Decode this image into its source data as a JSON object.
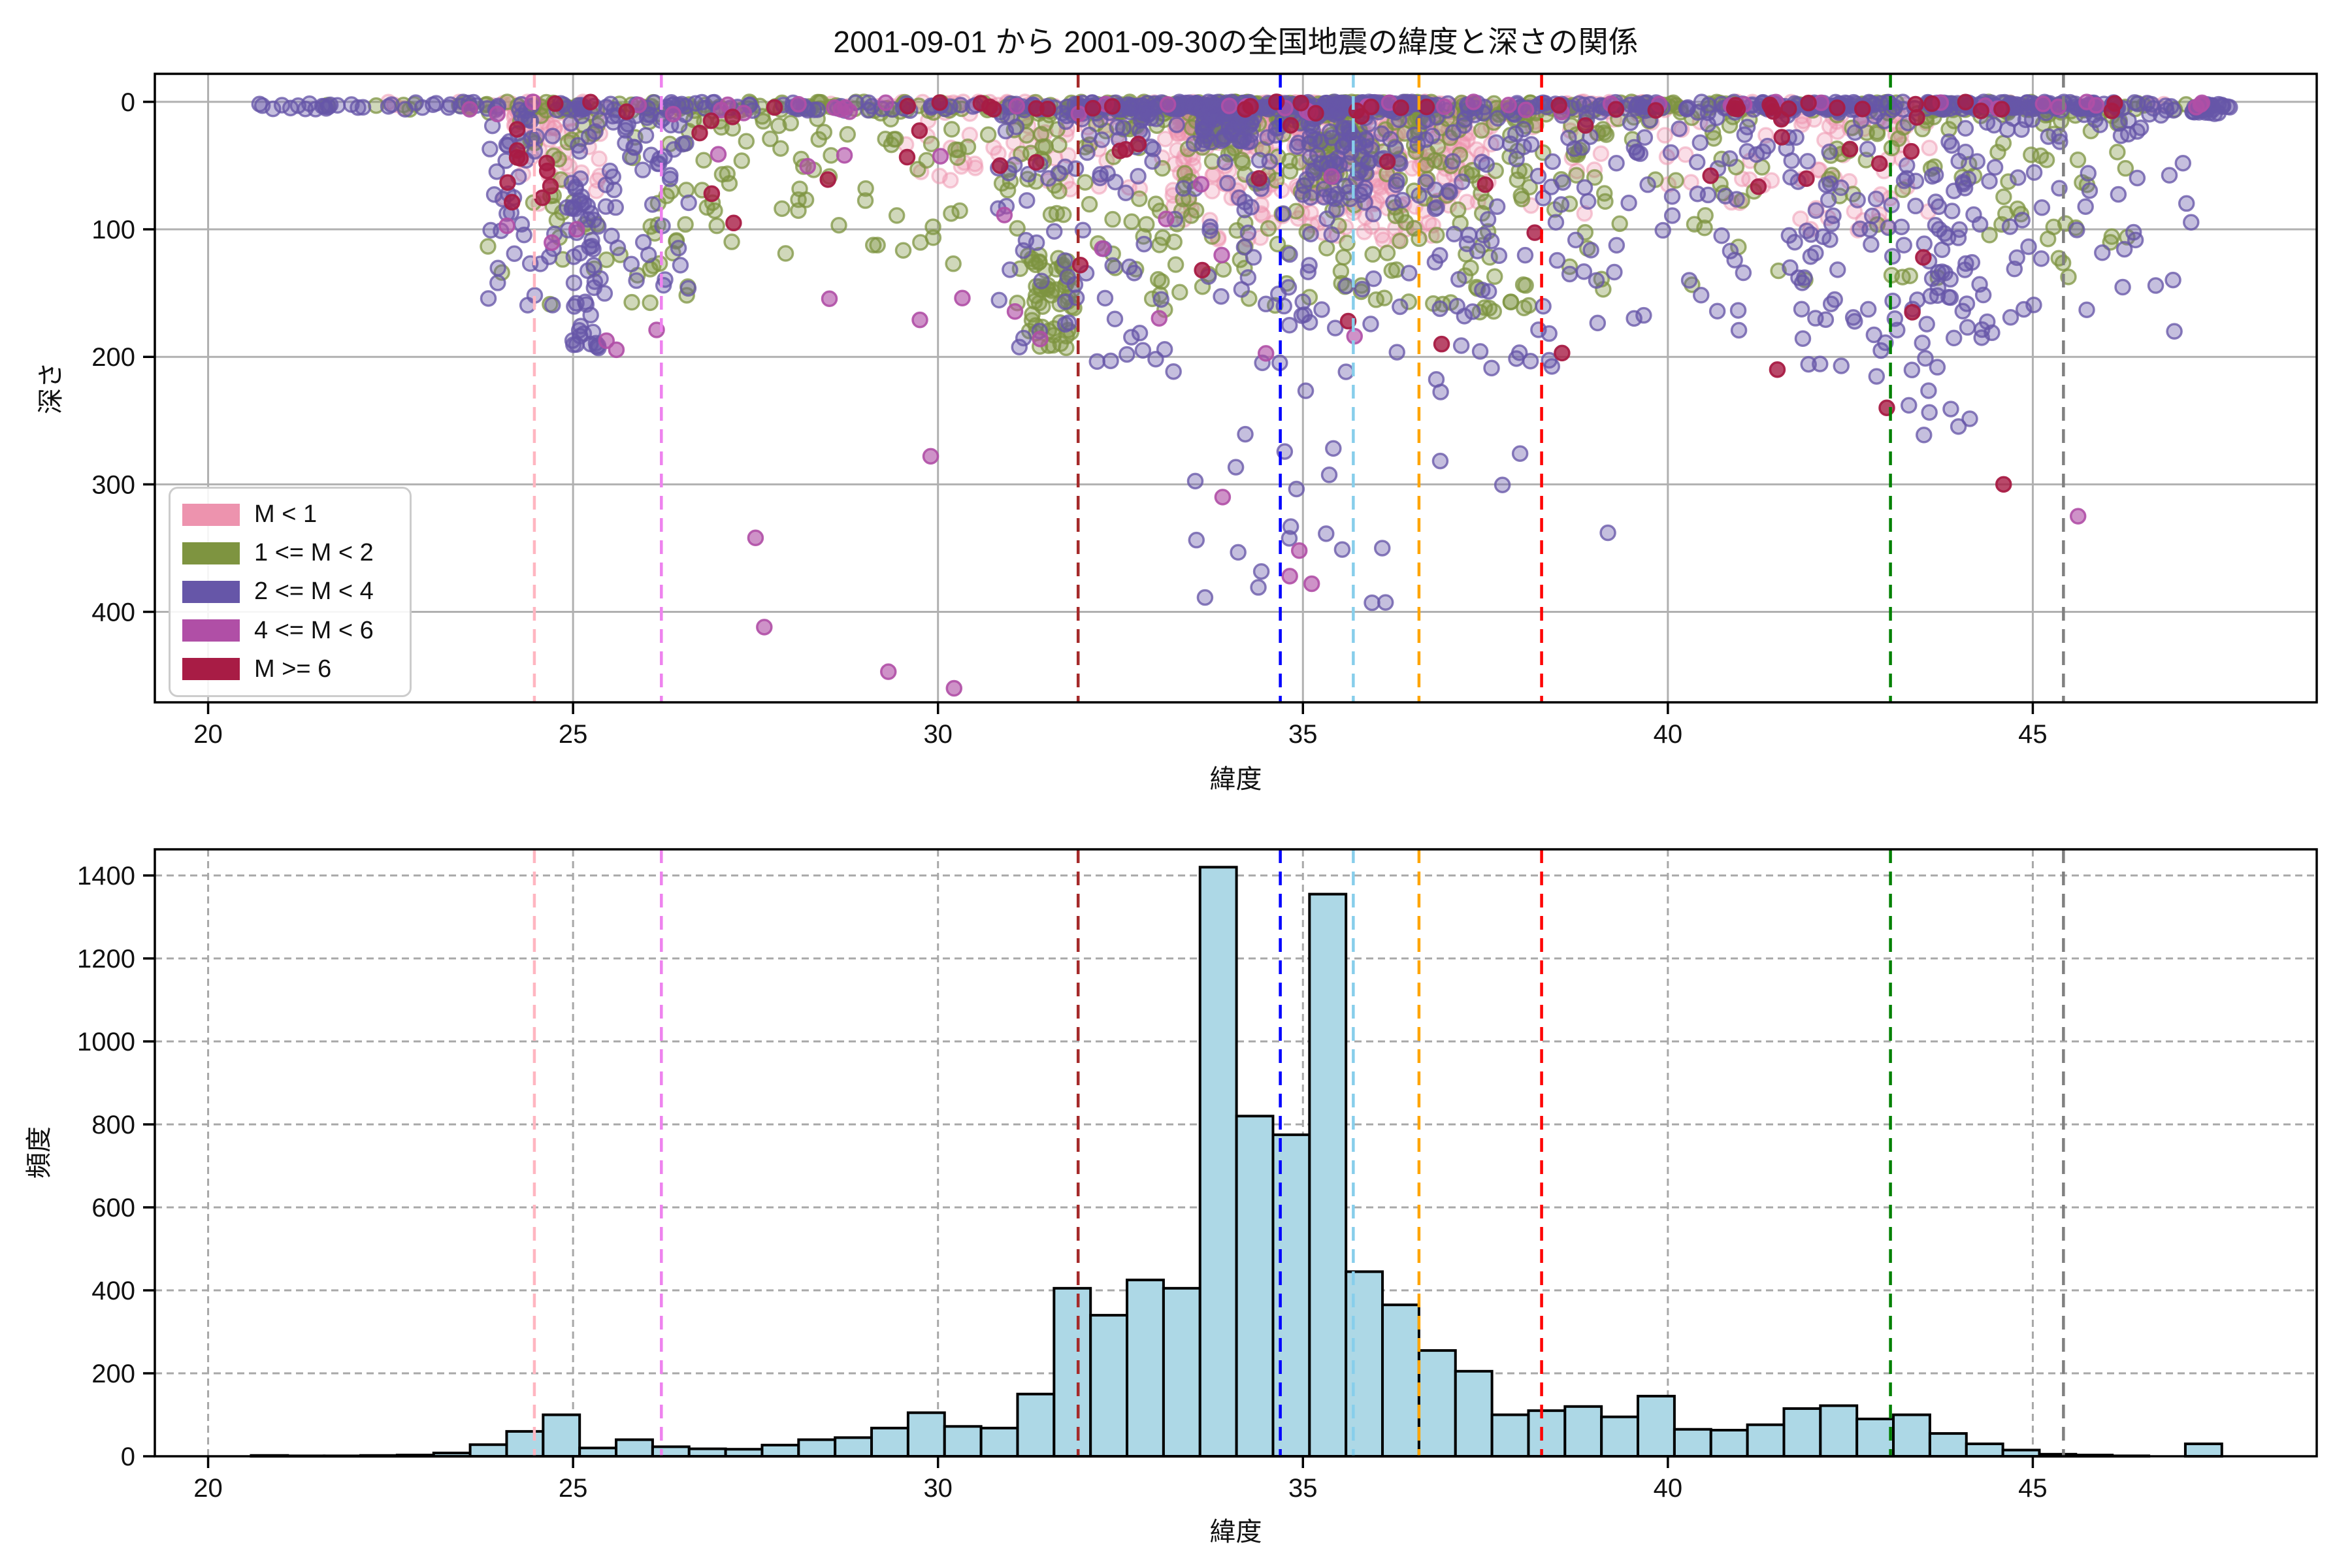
{
  "title": "2001-09-01 から 2001-09-30の全国地震の緯度と深さの関係",
  "legend": {
    "items": [
      {
        "label": "M < 1",
        "color": "#ED93AE"
      },
      {
        "label": "1 <= M < 2",
        "color": "#7E9440"
      },
      {
        "label": "2 <= M < 4",
        "color": "#6656A8"
      },
      {
        "label": "4 <= M < 6",
        "color": "#B04FA6"
      },
      {
        "label": "M >= 6",
        "color": "#A81C45"
      }
    ]
  },
  "chart_data": {
    "type": [
      "scatter",
      "bar"
    ],
    "xlabel": "緯度",
    "xlim": [
      19.27,
      48.89
    ],
    "xticks": [
      20,
      25,
      30,
      35,
      40,
      45
    ],
    "top": {
      "ylabel": "深さ",
      "ylim": [
        -22,
        471
      ],
      "yticks": [
        0,
        100,
        200,
        300,
        400
      ],
      "y_inverted": true,
      "grid_style": "solid",
      "grid_color": "#b0b0b0"
    },
    "bottom": {
      "ylabel": "頻度",
      "ylim": [
        0,
        1463
      ],
      "yticks": [
        0,
        200,
        400,
        600,
        800,
        1000,
        1200,
        1400
      ],
      "grid_style": "dashed",
      "grid_color": "#a8a8a8"
    },
    "vlines": [
      {
        "lat": 24.47,
        "color": "#FFB6C1"
      },
      {
        "lat": 26.21,
        "color": "#EE82EE"
      },
      {
        "lat": 31.92,
        "color": "#A52A2A"
      },
      {
        "lat": 34.69,
        "color": "#0000FF"
      },
      {
        "lat": 35.69,
        "color": "#87CEEB"
      },
      {
        "lat": 36.59,
        "color": "#FFA500"
      },
      {
        "lat": 38.27,
        "color": "#FF0000"
      },
      {
        "lat": 43.05,
        "color": "#008000"
      },
      {
        "lat": 45.42,
        "color": "#808080"
      }
    ],
    "histogram": {
      "bin_start": 20.59,
      "bin_width": 0.5,
      "fill": "#ADD8E6",
      "edge": "#000000",
      "counts": [
        2,
        1,
        1,
        2,
        3,
        8,
        28,
        60,
        100,
        20,
        40,
        23,
        18,
        17,
        27,
        40,
        45,
        68,
        105,
        72,
        68,
        150,
        405,
        340,
        425,
        405,
        1420,
        820,
        775,
        1355,
        445,
        365,
        255,
        205,
        100,
        110,
        120,
        95,
        145,
        65,
        63,
        76,
        115,
        122,
        90,
        100,
        55,
        30,
        15,
        5,
        3,
        1,
        0,
        30,
        0
      ]
    },
    "scatter": {
      "marker_radius": 11,
      "seed": 20010901,
      "classes": [
        {
          "label": "M < 1",
          "color": "#ED93AE",
          "fill_alpha": 0.3,
          "stroke_alpha": 0.5,
          "clusters": [
            [
              33.2,
              37.2,
              0,
              8,
              1,
              120
            ],
            [
              33.2,
              37.3,
              5,
              110,
              2.2,
              380
            ],
            [
              24.0,
              25.4,
              0,
              80,
              2,
              60
            ],
            [
              29.5,
              33.2,
              0,
              70,
              2,
              70
            ],
            [
              37.3,
              41.5,
              0,
              90,
              2.2,
              60
            ],
            [
              41.8,
              43.6,
              10,
              110,
              1.8,
              50
            ],
            [
              22.0,
              47.0,
              0,
              6,
              1,
              60
            ]
          ],
          "singles": []
        },
        {
          "label": "1 <= M < 2",
          "color": "#7E9440",
          "fill_alpha": 0.36,
          "stroke_alpha": 0.75,
          "clusters": [
            [
              21.5,
              47.3,
              0,
              7,
              1,
              240
            ],
            [
              30.8,
              38.2,
              6,
              165,
              1.9,
              330
            ],
            [
              23.8,
              27.6,
              5,
              160,
              1.7,
              90
            ],
            [
              31.25,
              31.85,
              120,
              195,
              1,
              48
            ],
            [
              38.2,
              46.3,
              6,
              150,
              1.9,
              150
            ],
            [
              27.6,
              30.8,
              5,
              130,
              2,
              55
            ],
            [
              33.6,
              34.3,
              0,
              30,
              1.3,
              60
            ],
            [
              35.1,
              35.8,
              0,
              60,
              1.5,
              50
            ],
            [
              31.8,
              36.8,
              0,
              6,
              1,
              80
            ]
          ],
          "singles": []
        },
        {
          "label": "2 <= M < 4",
          "color": "#6656A8",
          "fill_alpha": 0.38,
          "stroke_alpha": 0.78,
          "clusters": [
            [
              20.6,
              47.65,
              0,
              7,
              1,
              320
            ],
            [
              31.8,
              36.8,
              0,
              6,
              1,
              120
            ],
            [
              40.8,
              46.3,
              0,
              6,
              1,
              120
            ],
            [
              30.8,
              38.6,
              8,
              210,
              1.8,
              260
            ],
            [
              23.8,
              26.6,
              10,
              160,
              1.4,
              110
            ],
            [
              24.95,
              25.35,
              60,
              195,
              1,
              40
            ],
            [
              38.6,
              47.2,
              8,
              180,
              1.8,
              170
            ],
            [
              41.6,
              44.6,
              60,
              230,
              1.2,
              80
            ],
            [
              33.2,
              36.6,
              200,
              400,
              1,
              24
            ],
            [
              36.8,
              39.2,
              200,
              345,
              1,
              8
            ],
            [
              33.6,
              34.3,
              0,
              35,
              1.3,
              70
            ],
            [
              35.0,
              35.9,
              0,
              80,
              1.5,
              60
            ],
            [
              47.15,
              47.7,
              0,
              10,
              1,
              30
            ],
            [
              43.2,
              44.4,
              230,
              270,
              1,
              6
            ]
          ],
          "singles": []
        },
        {
          "label": "4 <= M < 6",
          "color": "#B04FA6",
          "fill_alpha": 0.62,
          "stroke_alpha": 0.9,
          "clusters": [
            [
              23.0,
              47.6,
              0,
              10,
              1.5,
              45
            ],
            [
              24.0,
              36.0,
              40,
              200,
              1.3,
              22
            ]
          ],
          "singles": [
            [
              27.5,
              342
            ],
            [
              27.62,
              412
            ],
            [
              29.32,
              447
            ],
            [
              29.9,
              278
            ],
            [
              30.22,
              460
            ],
            [
              34.82,
              372
            ],
            [
              34.95,
              352
            ],
            [
              45.62,
              325
            ],
            [
              33.9,
              310
            ],
            [
              35.12,
              378
            ],
            [
              25.05,
              100
            ],
            [
              31.4,
              186
            ],
            [
              47.3,
              2
            ],
            [
              44.35,
              3
            ],
            [
              33.15,
              2
            ]
          ]
        },
        {
          "label": "M >= 6",
          "color": "#A81C45",
          "fill_alpha": 0.8,
          "stroke_alpha": 0.95,
          "clusters": [
            [
              23.5,
              46.3,
              0,
              9,
              1.4,
              42
            ],
            [
              24.1,
              24.8,
              15,
              85,
              1.2,
              10
            ],
            [
              26.0,
              45.0,
              10,
              110,
              1.8,
              25
            ]
          ],
          "singles": [
            [
              26.9,
              72
            ],
            [
              31.95,
              128
            ],
            [
              36.9,
              190
            ],
            [
              38.55,
              197
            ],
            [
              41.5,
              210
            ],
            [
              44.6,
              300
            ],
            [
              43.35,
              165
            ],
            [
              43.5,
              122
            ],
            [
              33.62,
              132
            ],
            [
              35.62,
              172
            ],
            [
              43.0,
              240
            ],
            [
              27.2,
              95
            ],
            [
              30.85,
              50
            ],
            [
              34.4,
              60
            ]
          ]
        }
      ]
    }
  }
}
